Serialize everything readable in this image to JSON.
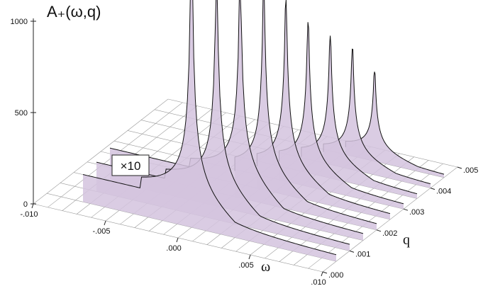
{
  "chart_data": {
    "type": "area",
    "title": "A₊(ω,q)",
    "xlabel": "ω",
    "ylabel": "q",
    "zlabel": "",
    "x_ticks": [
      "-.010",
      "-.005",
      ".000",
      ".005",
      ".010"
    ],
    "y_ticks": [
      ".000",
      ".001",
      ".002",
      ".003",
      ".004",
      ".005"
    ],
    "z_ticks": [
      "0",
      "500",
      "1000"
    ],
    "xlim": [
      -0.01,
      0.01
    ],
    "ylim": [
      0,
      0.005
    ],
    "zlim": [
      0,
      1000
    ],
    "grid": true,
    "annotation": "×10",
    "fill_color": "#d4c3de",
    "line_color": "#111111",
    "series": [
      {
        "q": 0.0005,
        "threshold": 0.0,
        "step_height": 150,
        "peak": 1400,
        "scaled": true
      },
      {
        "q": 0.001,
        "threshold": 0.0008,
        "step_height": 160,
        "peak": 1200,
        "scaled": true
      },
      {
        "q": 0.0015,
        "threshold": 0.0015,
        "step_height": 180,
        "peak": 1100,
        "scaled": true
      },
      {
        "q": 0.002,
        "threshold": 0.0022,
        "step_height": 140,
        "peak": 1050,
        "scaled": false
      },
      {
        "q": 0.0025,
        "threshold": 0.0028,
        "step_height": 120,
        "peak": 950,
        "scaled": false
      },
      {
        "q": 0.003,
        "threshold": 0.0034,
        "step_height": 100,
        "peak": 800,
        "scaled": false
      },
      {
        "q": 0.0035,
        "threshold": 0.004,
        "step_height": 80,
        "peak": 700,
        "scaled": false
      },
      {
        "q": 0.004,
        "threshold": 0.0046,
        "step_height": 60,
        "peak": 600,
        "scaled": false
      },
      {
        "q": 0.0045,
        "threshold": 0.0052,
        "step_height": 40,
        "peak": 450,
        "scaled": false
      }
    ]
  }
}
